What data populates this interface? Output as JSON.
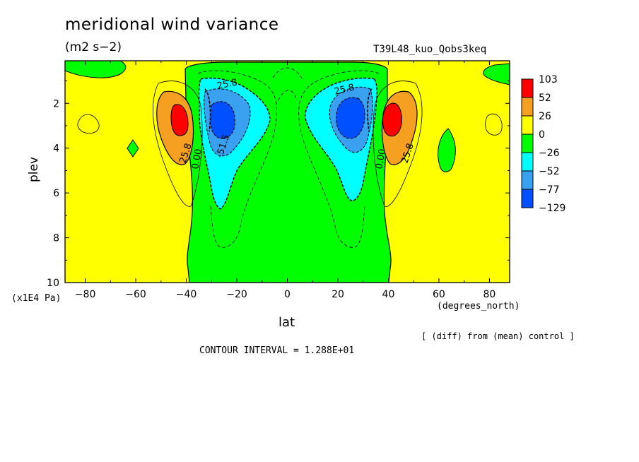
{
  "chart_data": {
    "type": "heatmap",
    "title": "meridional wind variance",
    "units": "(m2 s−2)",
    "run_label": "T39L48_kuo_Qobs3keq",
    "xlabel": "lat",
    "x_units": "(degrees_north)",
    "ylabel": "plev",
    "y_units": "(x1E4 Pa)",
    "xlim": [
      -88,
      88
    ],
    "ylim": [
      10,
      0.1
    ],
    "x_ticks": [
      "-80",
      "-60",
      "-40",
      "-20",
      "0",
      "20",
      "40",
      "60",
      "80"
    ],
    "y_ticks": [
      "2",
      "4",
      "6",
      "8",
      "10"
    ],
    "legend": {
      "placement": "right",
      "labels": [
        "103",
        "52",
        "26",
        "0",
        "−26",
        "−52",
        "−77",
        "−129"
      ],
      "colors": [
        "#ff0000",
        "#f5a020",
        "#ffff00",
        "#00ff00",
        "#00ffff",
        "#3aa0f0",
        "#0050ff"
      ]
    },
    "contour_labels": [
      "25.8",
      "25.8",
      "25.8",
      "25.8",
      "0.00",
      "0.00",
      "-51.5"
    ],
    "contour_interval": "CONTOUR INTERVAL = 1.288E+01",
    "note": "[ (diff) from (mean) control ]",
    "features": [
      {
        "lat": -42,
        "plev": 2.6,
        "level": "103"
      },
      {
        "lat": 42,
        "plev": 2.6,
        "level": "103"
      },
      {
        "lat": -28,
        "plev": 2.7,
        "level": "−129"
      },
      {
        "lat": 28,
        "plev": 2.6,
        "level": "−129"
      }
    ]
  }
}
